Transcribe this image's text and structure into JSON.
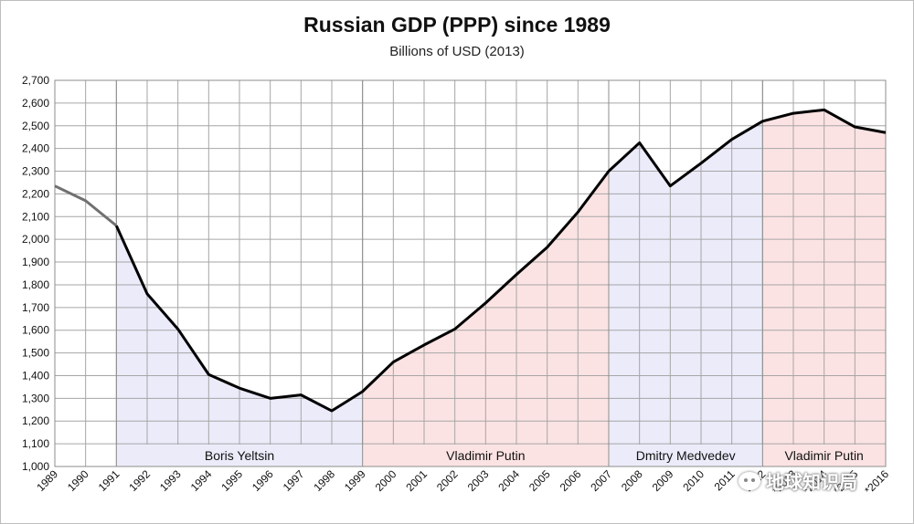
{
  "title": "Russian GDP (PPP) since 1989",
  "subtitle": "Billions of USD (2013)",
  "watermark": "地球知识局",
  "chart_data": {
    "type": "line",
    "title": "Russian GDP (PPP) since 1989",
    "subtitle": "Billions of USD (2013)",
    "xlabel": "",
    "ylabel": "",
    "ylim": [
      1000,
      2700
    ],
    "ytick_step": 100,
    "grid": true,
    "x": [
      "1989",
      "1990",
      "1991",
      "1992",
      "1993",
      "1994",
      "1995",
      "1996",
      "1997",
      "1998",
      "1999",
      "2000",
      "2001",
      "2002",
      "2003",
      "2004",
      "2005",
      "2006",
      "2007",
      "2008",
      "2009",
      "2010",
      "2011",
      "2012",
      "*2013",
      "*2014",
      "*2015",
      "*2016"
    ],
    "y": [
      2235,
      2170,
      2060,
      1760,
      1605,
      1405,
      1345,
      1300,
      1315,
      1245,
      1330,
      1460,
      1535,
      1605,
      1720,
      1845,
      1965,
      2120,
      2300,
      2425,
      2235,
      2335,
      2440,
      2520,
      2555,
      2570,
      2495,
      2470
    ],
    "eras": [
      {
        "label": "Boris Yeltsin",
        "from": "1991",
        "to": "1999",
        "color": "#ebebfa"
      },
      {
        "label": "Vladimir Putin",
        "from": "1999",
        "to": "2007",
        "color": "#fce3e3"
      },
      {
        "label": "Dmitry Medvedev",
        "from": "2007",
        "to": "2012",
        "color": "#ebebfa"
      },
      {
        "label": "Vladimir Putin",
        "from": "2012",
        "to": "*2016",
        "color": "#fce3e3"
      }
    ],
    "pre_era_until": "1991",
    "line_color": "#000000",
    "pre_era_line_color": "#707070",
    "grid_color": "#a6a6a6"
  }
}
